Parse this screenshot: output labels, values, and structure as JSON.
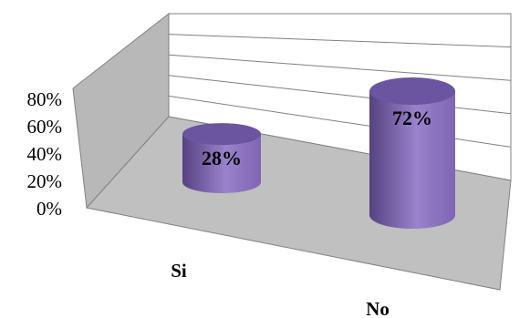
{
  "chart_data": {
    "type": "bar",
    "style": "3d-cylinder",
    "categories": [
      "Si",
      "No"
    ],
    "values": [
      28,
      72
    ],
    "data_labels": [
      "28%",
      "72%"
    ],
    "ytick_labels": [
      "0%",
      "20%",
      "40%",
      "60%",
      "80%"
    ],
    "ylim": [
      0,
      80
    ],
    "grid": true,
    "legend": "none",
    "colors": {
      "bar_side": "#7f65b3",
      "bar_side_dark": "#564281",
      "bar_side_light": "#9a82cc",
      "bar_top": "#6b55a0",
      "floor": "#c0c0c0",
      "back_wall": "#ffffff",
      "side_wall": "#b8b8b8"
    }
  }
}
